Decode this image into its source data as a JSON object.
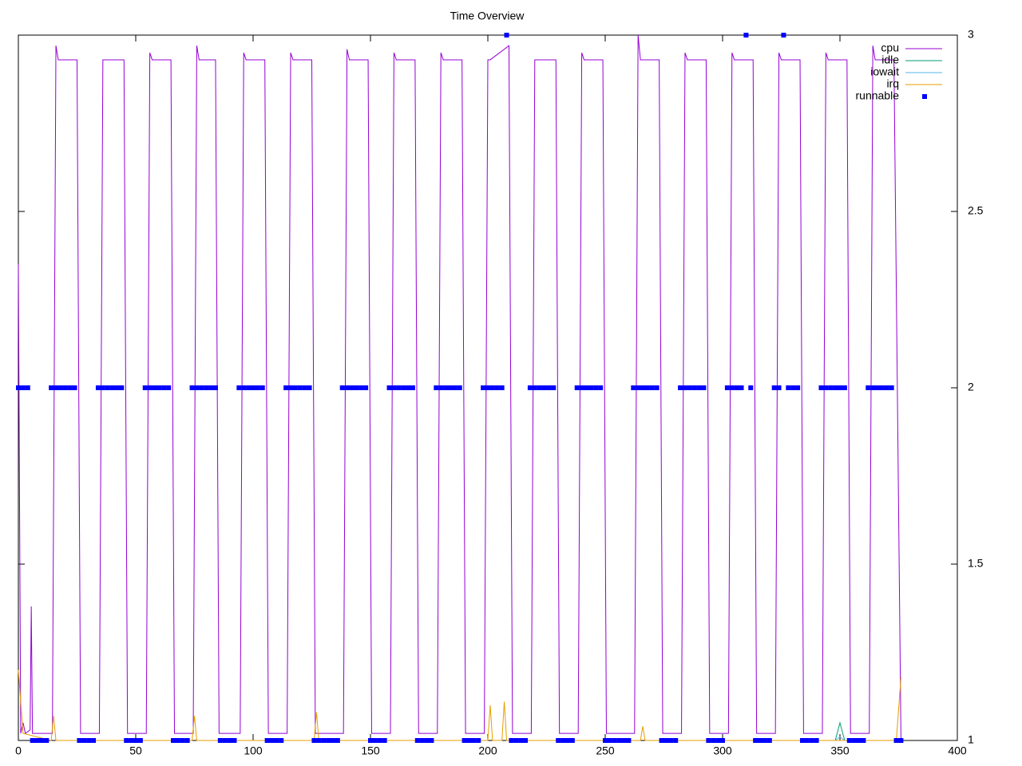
{
  "chart_data": {
    "type": "line",
    "title": "Time Overview",
    "xlim": [
      0,
      400
    ],
    "xticks": [
      0,
      50,
      100,
      150,
      200,
      250,
      300,
      350,
      400
    ],
    "ylim": [
      1,
      3
    ],
    "yticks": [
      1,
      1.5,
      2,
      2.5,
      3
    ],
    "legend": "top-right",
    "series": [
      {
        "name": "cpu",
        "color": "#9400d3",
        "mode": "lines",
        "x": [
          0,
          1,
          2,
          3,
          5,
          5.5,
          6,
          14.5,
          16,
          17,
          25,
          26.5,
          34.5,
          36,
          37,
          45,
          46.5,
          54.5,
          56,
          57,
          65,
          66.5,
          74.5,
          76,
          77,
          84,
          85.5,
          94.5,
          96,
          97,
          105,
          106.5,
          114.5,
          116,
          117,
          125,
          126.5,
          138.5,
          140,
          141,
          149,
          150.5,
          158.5,
          160,
          161,
          169,
          170.5,
          178.5,
          180,
          181,
          189,
          190.5,
          198.5,
          200,
          201,
          209,
          210.5,
          218.5,
          220,
          221,
          229,
          230.5,
          238.5,
          240,
          241,
          249,
          250.5,
          262.5,
          264,
          265,
          273,
          274.5,
          282.5,
          284,
          285,
          293,
          294.5,
          302.5,
          304,
          305,
          313,
          314.5,
          322.5,
          324,
          325,
          333,
          334.5,
          342.5,
          344,
          345,
          353,
          354.5,
          362.5,
          364,
          365,
          373,
          376
        ],
        "values": [
          2.35,
          1.02,
          1.05,
          1.02,
          1.03,
          1.38,
          1.02,
          1.02,
          2.97,
          2.93,
          2.93,
          1.02,
          1.02,
          2.93,
          2.93,
          2.93,
          1.02,
          1.02,
          2.95,
          2.93,
          2.93,
          1.02,
          1.02,
          2.97,
          2.93,
          2.93,
          1.02,
          1.02,
          2.95,
          2.93,
          2.93,
          1.02,
          1.02,
          2.95,
          2.93,
          2.93,
          1.02,
          1.02,
          2.96,
          2.93,
          2.93,
          1.02,
          1.02,
          2.95,
          2.93,
          2.93,
          1.02,
          1.02,
          2.95,
          2.93,
          2.93,
          1.02,
          1.02,
          2.93,
          2.93,
          2.97,
          1.02,
          1.02,
          2.93,
          2.93,
          2.93,
          1.02,
          1.02,
          2.95,
          2.93,
          2.93,
          1.02,
          1.02,
          3.0,
          2.93,
          2.93,
          1.02,
          1.02,
          2.95,
          2.93,
          2.93,
          1.02,
          1.02,
          2.95,
          2.93,
          2.93,
          1.02,
          1.02,
          2.95,
          2.93,
          2.93,
          1.02,
          1.02,
          2.95,
          2.93,
          2.93,
          1.02,
          1.02,
          2.97,
          2.93,
          2.93,
          1.0
        ]
      },
      {
        "name": "idle",
        "color": "#009e73",
        "mode": "lines",
        "x": [
          348,
          350,
          352
        ],
        "values": [
          1,
          1.05,
          1
        ]
      },
      {
        "name": "iowait",
        "color": "#56b4e9",
        "mode": "lines",
        "x": [
          348,
          350,
          352
        ],
        "values": [
          1,
          1.01,
          1
        ]
      },
      {
        "name": "irq",
        "color": "#e69f00",
        "mode": "lines",
        "x": [
          0,
          2,
          14,
          15,
          16,
          74,
          75,
          76,
          126,
          127,
          128,
          200,
          201,
          202,
          206,
          207,
          208,
          265,
          266,
          267,
          374,
          376
        ],
        "values": [
          1.2,
          1.02,
          1.0,
          1.07,
          1.0,
          1.0,
          1.07,
          1.0,
          1.0,
          1.08,
          1.0,
          1.0,
          1.1,
          1.0,
          1.0,
          1.11,
          1.0,
          1.0,
          1.04,
          1.0,
          1.0,
          1.18
        ]
      },
      {
        "name": "runnable",
        "color": "#0000ff",
        "mode": "points",
        "x": [
          0,
          2,
          4,
          6,
          8,
          10,
          12,
          14,
          16,
          18,
          20,
          22,
          24,
          26,
          28,
          30,
          32,
          34,
          36,
          38,
          40,
          42,
          44,
          46,
          48,
          50,
          52,
          54,
          56,
          58,
          60,
          62,
          64,
          66,
          68,
          70,
          72,
          74,
          76,
          78,
          80,
          82,
          84,
          86,
          88,
          90,
          92,
          94,
          96,
          98,
          100,
          102,
          104,
          106,
          108,
          110,
          112,
          114,
          116,
          118,
          120,
          122,
          124,
          126,
          128,
          130,
          132,
          134,
          136,
          138,
          140,
          142,
          144,
          146,
          148,
          150,
          152,
          154,
          156,
          158,
          160,
          162,
          164,
          166,
          168,
          170,
          172,
          174,
          176,
          178,
          180,
          182,
          184,
          186,
          188,
          190,
          192,
          194,
          196,
          198,
          200,
          202,
          204,
          206,
          208,
          210,
          212,
          214,
          216,
          218,
          220,
          222,
          224,
          226,
          228,
          230,
          232,
          234,
          236,
          238,
          240,
          242,
          244,
          246,
          248,
          250,
          252,
          254,
          256,
          258,
          260,
          262,
          264,
          266,
          268,
          270,
          272,
          274,
          276,
          278,
          280,
          282,
          284,
          286,
          288,
          290,
          292,
          294,
          296,
          298,
          300,
          302,
          304,
          306,
          308,
          310,
          312,
          314,
          316,
          318,
          320,
          322,
          324,
          326,
          328,
          330,
          332,
          334,
          336,
          338,
          340,
          342,
          344,
          346,
          348,
          350,
          352,
          354,
          356,
          358,
          360,
          362,
          364,
          366,
          368,
          370,
          372,
          374,
          376
        ],
        "values": [
          2,
          2,
          2,
          1,
          1,
          1,
          1,
          2,
          2,
          2,
          2,
          2,
          2,
          1,
          1,
          1,
          1,
          2,
          2,
          2,
          2,
          2,
          2,
          1,
          1,
          1,
          1,
          2,
          2,
          2,
          2,
          2,
          2,
          1,
          1,
          1,
          1,
          2,
          2,
          2,
          2,
          2,
          2,
          1,
          1,
          1,
          1,
          2,
          2,
          2,
          2,
          2,
          2,
          1,
          1,
          1,
          1,
          2,
          2,
          2,
          2,
          2,
          2,
          1,
          1,
          1,
          1,
          1,
          1,
          2,
          2,
          2,
          2,
          2,
          2,
          1,
          1,
          1,
          1,
          2,
          2,
          2,
          2,
          2,
          2,
          1,
          1,
          1,
          1,
          2,
          2,
          2,
          2,
          2,
          2,
          1,
          1,
          1,
          1,
          2,
          2,
          2,
          2,
          2,
          3,
          1,
          1,
          1,
          1,
          2,
          2,
          2,
          2,
          2,
          2,
          1,
          1,
          1,
          1,
          2,
          2,
          2,
          2,
          2,
          2,
          1,
          1,
          1,
          1,
          1,
          1,
          2,
          2,
          2,
          2,
          2,
          2,
          1,
          1,
          1,
          1,
          2,
          2,
          2,
          2,
          2,
          2,
          1,
          1,
          1,
          1,
          2,
          2,
          2,
          2,
          3,
          2,
          1,
          1,
          1,
          1,
          2,
          2,
          3,
          2,
          2,
          2,
          1,
          1,
          1,
          1,
          2,
          2,
          2,
          2,
          2,
          2,
          1,
          1,
          1,
          1,
          2,
          2,
          2,
          2,
          2,
          2,
          1,
          1
        ]
      }
    ]
  }
}
